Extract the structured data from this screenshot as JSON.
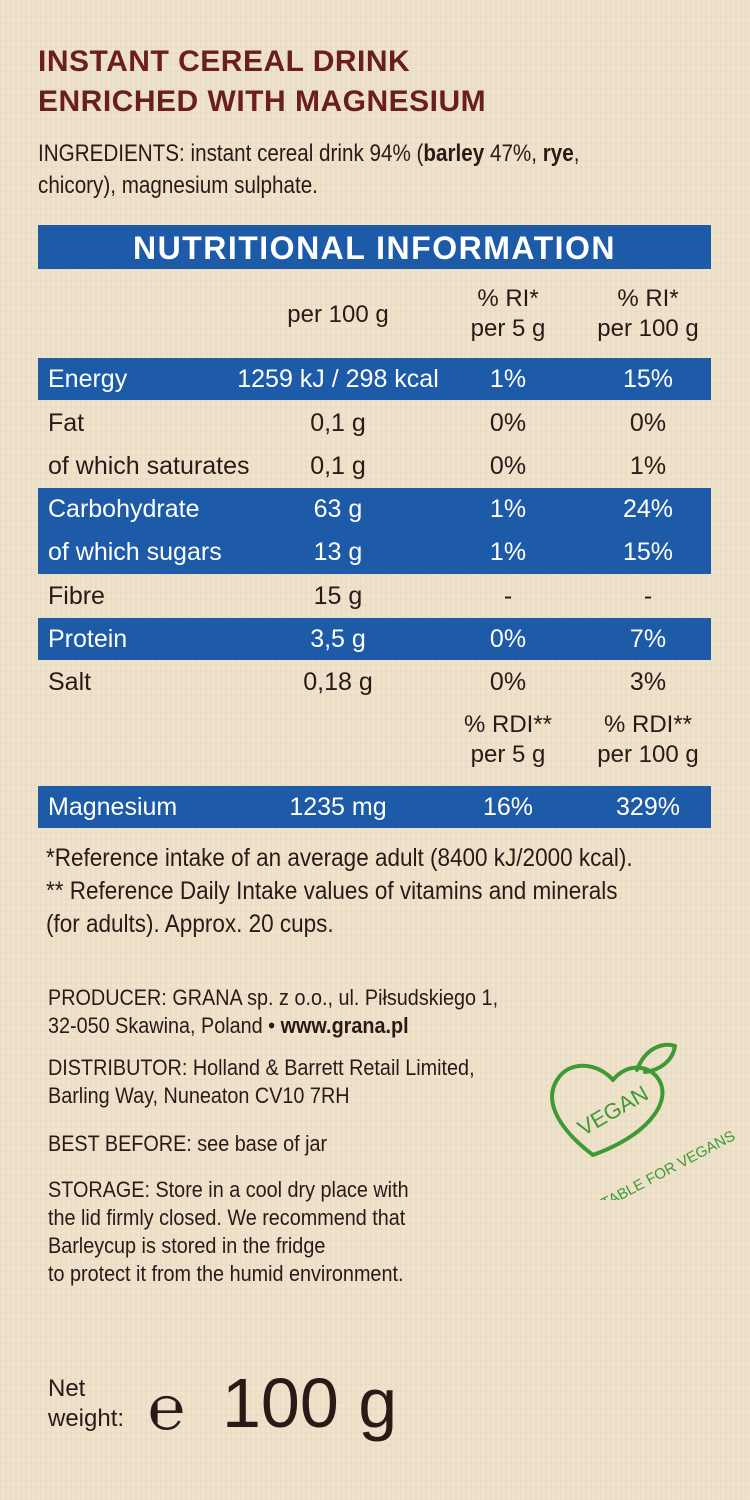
{
  "title": {
    "line1": "INSTANT CEREAL DRINK",
    "line2": "ENRICHED WITH MAGNESIUM"
  },
  "ingredients": {
    "label": "INGREDIENTS:",
    "text1": " instant cereal drink 94% (",
    "barley": "barley",
    "text2": " 47%, ",
    "rye": "rye",
    "text3": ",",
    "line2": "chicory), magnesium sulphate."
  },
  "nutrition": {
    "header": "NUTRITIONAL INFORMATION",
    "col_per100": "per 100 g",
    "col_ri_per5_line1": "% RI*",
    "col_ri_per5_line2": "per 5 g",
    "col_ri_per100_line1": "% RI*",
    "col_ri_per100_line2": "per 100 g",
    "rows": [
      {
        "name": "Energy",
        "per100": "1259 kJ / 298 kcal",
        "ri5": "1%",
        "ri100": "15%"
      },
      {
        "name": "Fat",
        "per100": "0,1 g",
        "ri5": "0%",
        "ri100": "0%"
      },
      {
        "name": "of which saturates",
        "per100": "0,1 g",
        "ri5": "0%",
        "ri100": "1%"
      },
      {
        "name": "Carbohydrate",
        "per100": "63 g",
        "ri5": "1%",
        "ri100": "24%"
      },
      {
        "name": "of which sugars",
        "per100": "13 g",
        "ri5": "1%",
        "ri100": "15%"
      },
      {
        "name": "Fibre",
        "per100": "15 g",
        "ri5": "-",
        "ri100": "-"
      },
      {
        "name": "Protein",
        "per100": "3,5 g",
        "ri5": "0%",
        "ri100": "7%"
      },
      {
        "name": "Salt",
        "per100": "0,18 g",
        "ri5": "0%",
        "ri100": "3%"
      }
    ],
    "col_rdi_per5_line1": "% RDI**",
    "col_rdi_per5_line2": "per 5 g",
    "col_rdi_per100_line1": "% RDI**",
    "col_rdi_per100_line2": "per 100 g",
    "magnesium": {
      "name": "Magnesium",
      "per100": "1235 mg",
      "rdi5": "16%",
      "rdi100": "329%"
    }
  },
  "footnotes": {
    "line1": "*Reference intake of an average adult (8400 kJ/2000 kcal).",
    "line2": "** Reference Daily Intake values of vitamins and minerals",
    "line3": "(for adults). Approx. 20 cups."
  },
  "producer": {
    "label": "PRODUCER:",
    "line1": " GRANA sp. z o.o., ul. Piłsudskiego 1,",
    "line2": "32-050 Skawina, Poland • ",
    "website": "www.grana.pl"
  },
  "distributor": {
    "label": "DISTRIBUTOR:",
    "line1": " Holland & Barrett Retail Limited,",
    "line2": "Barling Way, Nuneaton CV10 7RH"
  },
  "best_before": {
    "label": "BEST BEFORE:",
    "text": " see base of jar"
  },
  "storage": {
    "label": "STORAGE:",
    "line1": " Store in a cool dry place with",
    "line2": "the lid firmly closed. We recommend that",
    "line3": "Barleycup is stored in the fridge",
    "line4": "to protect it from the humid environment."
  },
  "vegan": {
    "word": "VEGAN",
    "tagline": "SUITABLE FOR VEGANS",
    "color": "#3f9a35",
    "icon": "vegan-heart-leaf-icon"
  },
  "net_weight": {
    "label_line1": "Net",
    "label_line2": "weight:",
    "symbol": "℮",
    "value": "100 g"
  },
  "colors": {
    "title": "#6b1e1e",
    "table_blue": "#1d5aa8",
    "background": "#efe3cc"
  }
}
